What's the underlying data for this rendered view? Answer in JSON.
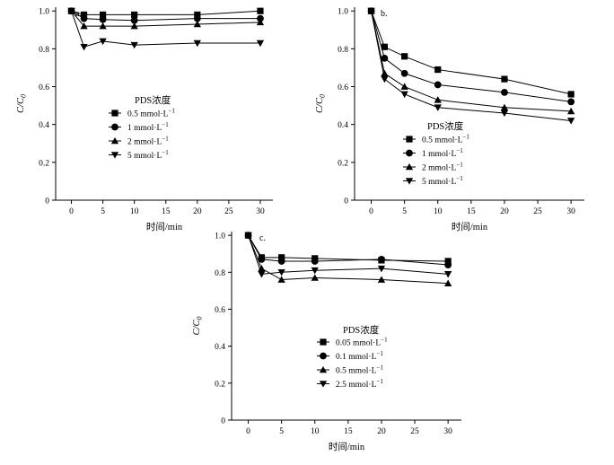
{
  "chart_data": [
    {
      "type": "line",
      "panel": "a.",
      "xlabel": "时间/min",
      "ylabel": "C/C",
      "ylabel_sub": "0",
      "xticks": [
        0,
        5,
        10,
        15,
        20,
        25,
        30
      ],
      "xtick_labels": [
        "0",
        "5",
        "10",
        "15",
        "20",
        "25",
        "30"
      ],
      "yticks": [
        0,
        0.2,
        0.4,
        0.6,
        0.8,
        1.0
      ],
      "ytick_labels": [
        "0",
        "0.2",
        "0.4",
        "0.6",
        "0.8",
        "1.0"
      ],
      "xlim": [
        -2.5,
        32
      ],
      "ylim": [
        0,
        1.02
      ],
      "legend_title": "PDS浓度",
      "legend_position": "center",
      "x": [
        0,
        2,
        5,
        10,
        20,
        30
      ],
      "series": [
        {
          "name": "0.5 mmol·L",
          "sup": "−1",
          "marker": "square",
          "values": [
            1.0,
            0.98,
            0.98,
            0.98,
            0.98,
            1.0
          ]
        },
        {
          "name": "1 mmol·L",
          "sup": "−1",
          "marker": "circle",
          "values": [
            1.0,
            0.96,
            0.955,
            0.95,
            0.96,
            0.96
          ]
        },
        {
          "name": "2 mmol·L",
          "sup": "−1",
          "marker": "triangle-up",
          "values": [
            1.0,
            0.92,
            0.92,
            0.92,
            0.93,
            0.94
          ]
        },
        {
          "name": "5 mmol·L",
          "sup": "−1",
          "marker": "triangle-down",
          "values": [
            1.0,
            0.81,
            0.84,
            0.82,
            0.83,
            0.83
          ]
        }
      ]
    },
    {
      "type": "line",
      "panel": "b.",
      "xlabel": "时间/min",
      "ylabel": "C/C",
      "ylabel_sub": "0",
      "xticks": [
        0,
        5,
        10,
        15,
        20,
        25,
        30
      ],
      "xtick_labels": [
        "0",
        "5",
        "10",
        "15",
        "20",
        "25",
        "30"
      ],
      "yticks": [
        0,
        0.2,
        0.4,
        0.6,
        0.8,
        1.0
      ],
      "ytick_labels": [
        "0",
        "0.2",
        "0.4",
        "0.6",
        "0.8",
        "1.0"
      ],
      "xlim": [
        -2.5,
        32
      ],
      "ylim": [
        0,
        1.02
      ],
      "legend_title": "PDS浓度",
      "legend_position": "bottom-left",
      "x": [
        0,
        2,
        5,
        10,
        20,
        30
      ],
      "series": [
        {
          "name": "0.5 mmol·L",
          "sup": "−1",
          "marker": "square",
          "values": [
            1.0,
            0.81,
            0.76,
            0.69,
            0.64,
            0.56
          ]
        },
        {
          "name": "1 mmol·L",
          "sup": "−1",
          "marker": "circle",
          "values": [
            1.0,
            0.75,
            0.67,
            0.61,
            0.57,
            0.52
          ]
        },
        {
          "name": "2 mmol·L",
          "sup": "−1",
          "marker": "triangle-up",
          "values": [
            1.0,
            0.67,
            0.6,
            0.53,
            0.49,
            0.47
          ]
        },
        {
          "name": "5 mmol·L",
          "sup": "−1",
          "marker": "triangle-down",
          "values": [
            1.0,
            0.64,
            0.56,
            0.49,
            0.46,
            0.42
          ]
        }
      ]
    },
    {
      "type": "line",
      "panel": "c.",
      "xlabel": "时间/min",
      "ylabel": "C/C",
      "ylabel_sub": "0",
      "xticks": [
        0,
        5,
        10,
        15,
        20,
        25,
        30
      ],
      "xtick_labels": [
        "0",
        "5",
        "10",
        "15",
        "20",
        "25",
        "30"
      ],
      "yticks": [
        0,
        0.2,
        0.4,
        0.6,
        0.8,
        1.0
      ],
      "ytick_labels": [
        "0",
        "0.2",
        "0.4",
        "0.6",
        "0.8",
        "1.0"
      ],
      "xlim": [
        -2.5,
        32
      ],
      "ylim": [
        0,
        1.02
      ],
      "legend_title": "PDS浓度",
      "legend_position": "center",
      "x": [
        0,
        2,
        5,
        10,
        20,
        30
      ],
      "series": [
        {
          "name": "0.05 mmol·L",
          "sup": "−1",
          "marker": "square",
          "values": [
            1.0,
            0.88,
            0.88,
            0.875,
            0.865,
            0.86
          ]
        },
        {
          "name": "0.1 mmol·L",
          "sup": "−1",
          "marker": "circle",
          "values": [
            1.0,
            0.87,
            0.86,
            0.86,
            0.87,
            0.84
          ]
        },
        {
          "name": "0.5 mmol·L",
          "sup": "−1",
          "marker": "triangle-up",
          "values": [
            1.0,
            0.82,
            0.76,
            0.77,
            0.76,
            0.74
          ]
        },
        {
          "name": "2.5 mmol·L",
          "sup": "−1",
          "marker": "triangle-down",
          "values": [
            1.0,
            0.79,
            0.8,
            0.81,
            0.82,
            0.79
          ]
        }
      ]
    }
  ]
}
